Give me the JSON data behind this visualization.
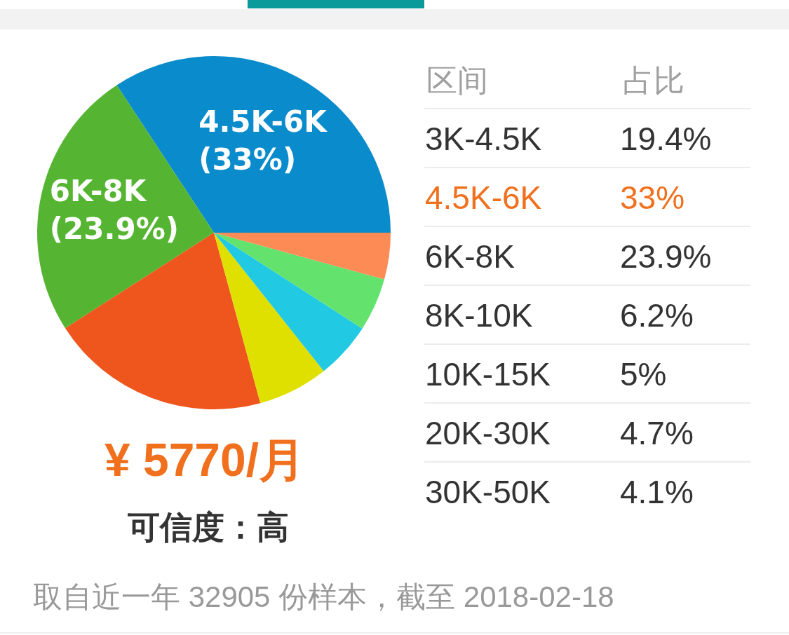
{
  "chart_data": [
    {
      "type": "pie",
      "categories": [
        "4.5K-6K",
        "6K-8K",
        null,
        null,
        null,
        null,
        null
      ],
      "values": [
        33,
        23.9,
        19.4,
        6.2,
        5,
        4.7,
        4.1
      ],
      "colors": [
        "#0a8bcb",
        "#55b532",
        "#ee561d",
        "#dfe000",
        "#22c9e3",
        "#63e36e",
        "#fc8b55"
      ],
      "value_labels": [
        "(33%)",
        "(23.9%)",
        null,
        null,
        null,
        null,
        null
      ],
      "annotations": [
        "¥ 5770/月",
        "可信度：高",
        "取自近一年 32905 份样本，截至 2018-02-18"
      ]
    },
    {
      "type": "other",
      "xlabel": "区间",
      "ylabel": "占比",
      "categories": [
        "3K-4.5K",
        "4.5K-6K",
        "6K-8K",
        "8K-10K",
        "10K-15K",
        "20K-30K",
        "30K-50K"
      ],
      "value_labels": [
        "19.4%",
        "33%",
        "23.9%",
        "6.2%",
        "5%",
        "4.7%",
        "4.1%"
      ],
      "colors": [
        "#333333",
        "#f0701e",
        "#333333",
        "#333333",
        "#333333",
        "#333333",
        "#333333"
      ]
    }
  ]
}
